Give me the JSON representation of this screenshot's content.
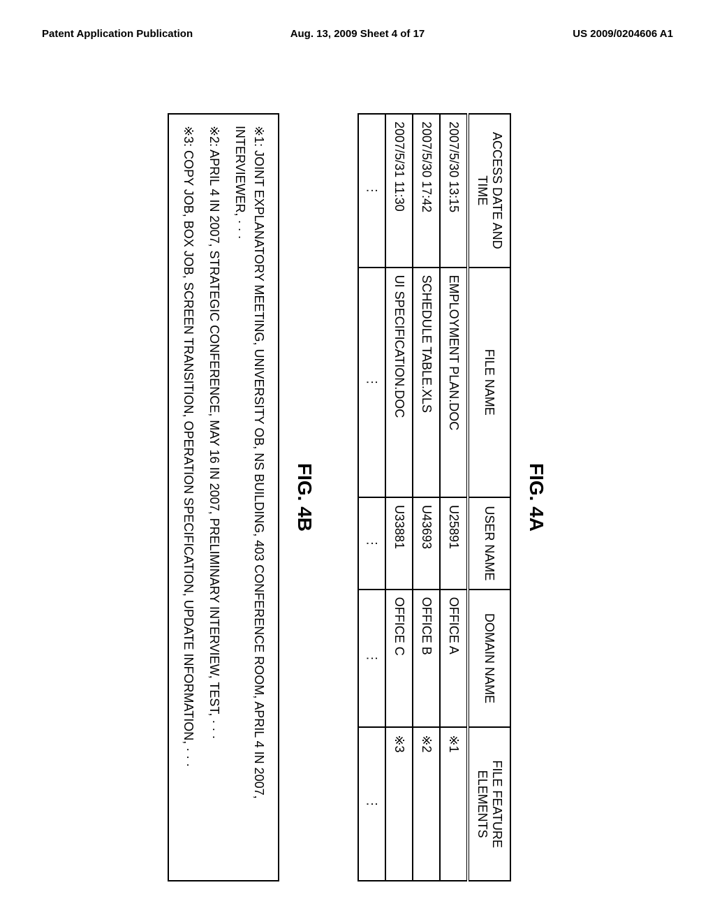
{
  "header": {
    "left": "Patent Application Publication",
    "center": "Aug. 13, 2009  Sheet 4 of 17",
    "right": "US 2009/0204606 A1"
  },
  "fig4a": {
    "label": "FIG. 4A",
    "columns": {
      "access": "ACCESS DATE AND TIME",
      "file": "FILE NAME",
      "user": "USER NAME",
      "domain": "DOMAIN NAME",
      "feature": "FILE FEATURE ELEMENTS"
    },
    "rows": [
      {
        "access": "2007/5/30 13:15",
        "file": "EMPLOYMENT PLAN.DOC",
        "user": "U25891",
        "domain": "OFFICE A",
        "feature": "※1"
      },
      {
        "access": "2007/5/30 17:42",
        "file": "SCHEDULE TABLE.XLS",
        "user": "U43693",
        "domain": "OFFICE B",
        "feature": "※2"
      },
      {
        "access": "2007/5/31 11:30",
        "file": "UI SPECIFICATION.DOC",
        "user": "U33881",
        "domain": "OFFICE C",
        "feature": "※3"
      }
    ],
    "ellipsis_row": {
      "access": "⋮",
      "file": "⋮",
      "user": "⋮",
      "domain": "⋮",
      "feature": "⋮"
    }
  },
  "fig4b": {
    "label": "FIG. 4B",
    "notes": [
      "※1: JOINT EXPLANATORY MEETING, UNIVERSITY OB, NS BUILDING, 403 CONFERENCE ROOM, APRIL 4 IN 2007, INTERVIEWER, · · ·",
      "※2: APRIL 4 IN 2007, STRATEGIC CONFERENCE, MAY 16 IN 2007, PRELIMINARY INTERVIEW, TEST, · · ·",
      "※3: COPY JOB, BOX JOB, SCREEN TRANSITION, OPERATION SPECIFICATION, UPDATE INFORMATION, · · ·"
    ]
  }
}
